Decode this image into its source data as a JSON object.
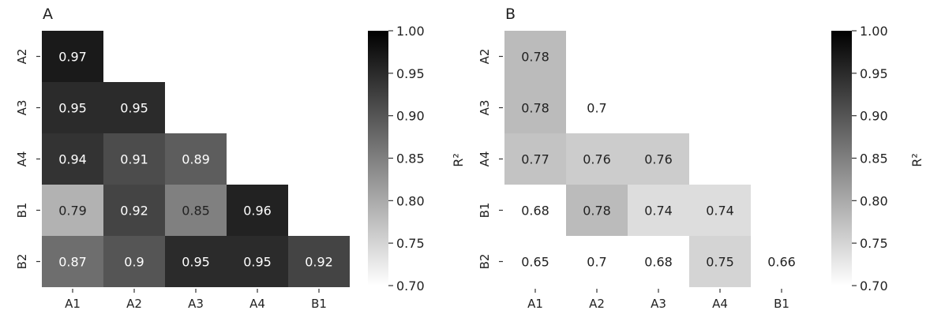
{
  "chart_data": [
    {
      "type": "heatmap",
      "panel_label": "A",
      "rows": [
        "A2",
        "A3",
        "A4",
        "B1",
        "B2"
      ],
      "columns": [
        "A1",
        "A2",
        "A3",
        "A4",
        "B1"
      ],
      "values": [
        [
          0.97,
          null,
          null,
          null,
          null
        ],
        [
          0.95,
          0.95,
          null,
          null,
          null
        ],
        [
          0.94,
          0.91,
          0.89,
          null,
          null
        ],
        [
          0.79,
          0.92,
          0.85,
          0.96,
          null
        ],
        [
          0.87,
          0.9,
          0.95,
          0.95,
          0.92
        ]
      ],
      "colorbar": {
        "label": "R²",
        "range": [
          0.7,
          1.0
        ],
        "ticks": [
          "0.70",
          "0.75",
          "0.80",
          "0.85",
          "0.90",
          "0.95",
          "1.00"
        ],
        "colormap": "greys"
      }
    },
    {
      "type": "heatmap",
      "panel_label": "B",
      "rows": [
        "A2",
        "A3",
        "A4",
        "B1",
        "B2"
      ],
      "columns": [
        "A1",
        "A2",
        "A3",
        "A4",
        "B1"
      ],
      "values": [
        [
          0.78,
          null,
          null,
          null,
          null
        ],
        [
          0.78,
          0.7,
          null,
          null,
          null
        ],
        [
          0.77,
          0.76,
          0.76,
          null,
          null
        ],
        [
          0.68,
          0.78,
          0.74,
          0.74,
          null
        ],
        [
          0.65,
          0.7,
          0.68,
          0.75,
          0.66
        ]
      ],
      "colorbar": {
        "label": "R²",
        "range": [
          0.7,
          1.0
        ],
        "ticks": [
          "0.70",
          "0.75",
          "0.80",
          "0.85",
          "0.90",
          "0.95",
          "1.00"
        ],
        "colormap": "greys"
      }
    }
  ]
}
